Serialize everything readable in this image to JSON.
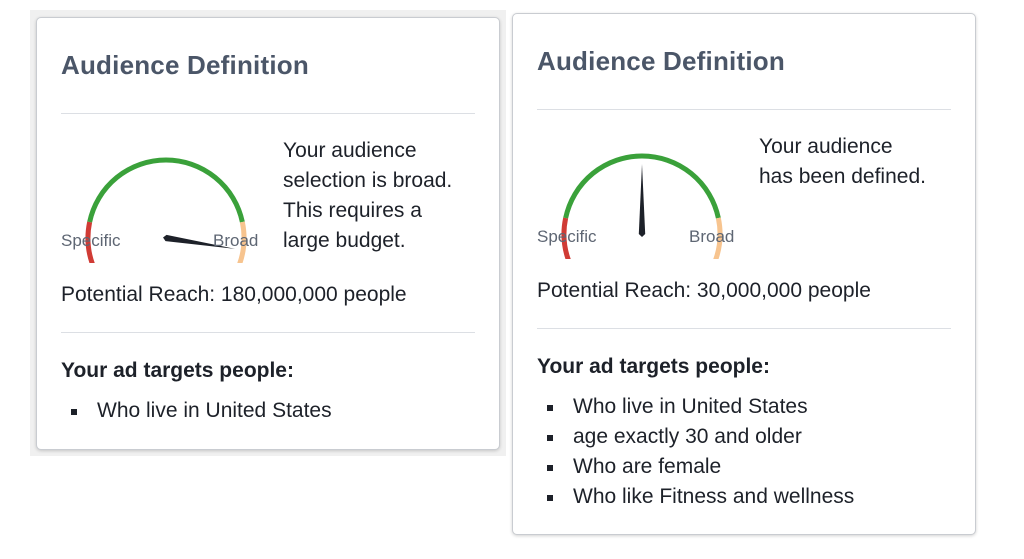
{
  "colors": {
    "title": "#4b5668",
    "gauge_red": "#d03b35",
    "gauge_green": "#3aa13a",
    "gauge_peach": "#f7c48f",
    "needle": "#1d2129"
  },
  "left_card": {
    "title": "Audience Definition",
    "gauge": {
      "level": 0.93,
      "label_specific": "Specific",
      "label_broad": "Broad"
    },
    "description_lines": [
      "Your audience",
      "selection is broad.",
      "This requires a",
      "large budget."
    ],
    "reach_label": "Potential Reach: 180,000,000 people",
    "targets_heading": "Your ad targets people:",
    "targets": [
      "Who live in United States"
    ]
  },
  "right_card": {
    "title": "Audience Definition",
    "gauge": {
      "level": 0.5,
      "label_specific": "Specific",
      "label_broad": "Broad"
    },
    "description_lines": [
      "Your audience",
      "has been defined."
    ],
    "reach_label": "Potential Reach: 30,000,000 people",
    "targets_heading": "Your ad targets people:",
    "targets": [
      "Who live in United States",
      "age exactly 30 and older",
      "Who are female",
      "Who like Fitness and wellness"
    ]
  }
}
